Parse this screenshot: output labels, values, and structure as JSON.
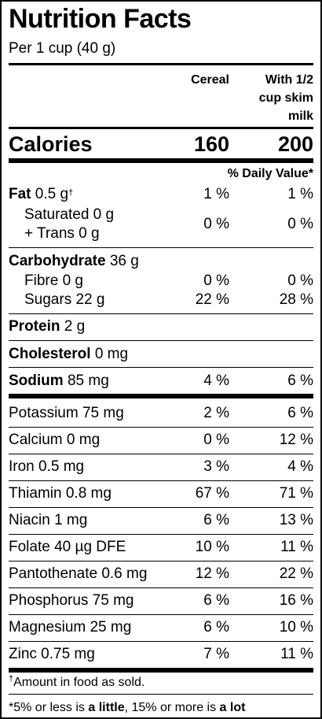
{
  "title": "Nutrition Facts",
  "serving": "Per 1 cup (40 g)",
  "columns": {
    "col1": "Cereal",
    "col2_line1": "With 1/2",
    "col2_line2": "cup skim",
    "col2_line3": "milk"
  },
  "calories": {
    "label": "Calories",
    "col1": "160",
    "col2": "200"
  },
  "daily_value_header": "% Daily Value*",
  "nutrients": {
    "fat": {
      "name": "Fat",
      "amount": "0.5 g",
      "mark": "†",
      "col1": "1 %",
      "col2": "1 %"
    },
    "saturated": {
      "line1": "Saturated 0 g",
      "line2": "+ Trans 0 g",
      "col1": "0 %",
      "col2": "0 %"
    },
    "carbohydrate": {
      "name": "Carbohydrate",
      "amount": "36 g"
    },
    "fibre": {
      "label": "Fibre 0 g",
      "col1": "0 %",
      "col2": "0 %"
    },
    "sugars": {
      "label": "Sugars 22 g",
      "col1": "22 %",
      "col2": "28 %"
    },
    "protein": {
      "name": "Protein",
      "amount": "2 g"
    },
    "cholesterol": {
      "name": "Cholesterol",
      "amount": "0 mg"
    },
    "sodium": {
      "name": "Sodium",
      "amount": "85 mg",
      "col1": "4 %",
      "col2": "6 %"
    }
  },
  "micronutrients": [
    {
      "label": "Potassium 75 mg",
      "col1": "2 %",
      "col2": "6 %"
    },
    {
      "label": "Calcium 0 mg",
      "col1": "0 %",
      "col2": "12 %"
    },
    {
      "label": "Iron 0.5 mg",
      "col1": "3 %",
      "col2": "4 %"
    },
    {
      "label": "Thiamin 0.8 mg",
      "col1": "67 %",
      "col2": "71 %"
    },
    {
      "label": "Niacin 1 mg",
      "col1": "6 %",
      "col2": "13 %"
    },
    {
      "label": "Folate 40 µg DFE",
      "col1": "10 %",
      "col2": "11 %"
    },
    {
      "label": "Pantothenate 0.6 mg",
      "col1": "12 %",
      "col2": "22 %"
    },
    {
      "label": "Phosphorus 75 mg",
      "col1": "6 %",
      "col2": "16 %"
    },
    {
      "label": "Magnesium 25 mg",
      "col1": "6 %",
      "col2": "10 %"
    },
    {
      "label": "Zinc 0.75 mg",
      "col1": "7 %",
      "col2": "11 %"
    }
  ],
  "footnote1": {
    "mark": "†",
    "text": "Amount in food as sold."
  },
  "footnote2": {
    "star": "*",
    "pre": "5% or less is ",
    "little": "a little",
    "mid": ", 15% or more is ",
    "lot": "a lot"
  }
}
